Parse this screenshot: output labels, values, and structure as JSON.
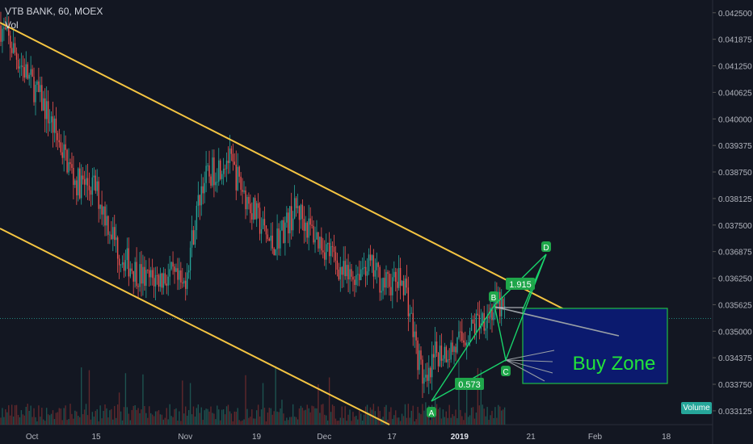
{
  "header": {
    "title": "VTB BANK, 60, MOEX",
    "volume_label": "Vol"
  },
  "volume_tag": "Volume",
  "colors": {
    "background": "#131722",
    "channel": "#f5c542",
    "pattern": "#19d36b",
    "buy_zone_fill": "#0b1a6e",
    "buy_zone_border": "#1fbd45",
    "buy_zone_text": "#22e33a",
    "candle_up": "#26a69a",
    "candle_down": "#ef5350",
    "vol_up": "#1f5a55",
    "vol_down": "#6a2a2e"
  },
  "chart_data": {
    "type": "candlestick",
    "title": "VTB BANK, 60, MOEX",
    "y_ticks": [
      "0.042500",
      "0.041875",
      "0.041250",
      "0.040625",
      "0.040000",
      "0.039375",
      "0.038750",
      "0.038125",
      "0.037500",
      "0.036875",
      "0.036250",
      "0.035625",
      "0.035000",
      "0.034375",
      "0.033750",
      "0.033125"
    ],
    "ylim": [
      0.0328,
      0.0428
    ],
    "x_ticks": [
      "Oct",
      "15",
      "Nov",
      "19",
      "Dec",
      "17",
      "2019",
      "21",
      "Feb",
      "18"
    ],
    "horizontal_level": 0.0353,
    "price_path": [
      [
        0,
        0.0422
      ],
      [
        0.07,
        0.0403
      ],
      [
        0.12,
        0.0385
      ],
      [
        0.15,
        0.0384
      ],
      [
        0.19,
        0.0368
      ],
      [
        0.23,
        0.0362
      ],
      [
        0.27,
        0.0363
      ],
      [
        0.29,
        0.036
      ],
      [
        0.32,
        0.0385
      ],
      [
        0.36,
        0.0391
      ],
      [
        0.385,
        0.0383
      ],
      [
        0.43,
        0.037
      ],
      [
        0.47,
        0.0379
      ],
      [
        0.49,
        0.0374
      ],
      [
        0.52,
        0.0369
      ],
      [
        0.55,
        0.0362
      ],
      [
        0.58,
        0.0366
      ],
      [
        0.61,
        0.0361
      ],
      [
        0.64,
        0.0362
      ],
      [
        0.66,
        0.0345
      ],
      [
        0.675,
        0.0336
      ],
      [
        0.69,
        0.0345
      ],
      [
        0.72,
        0.0346
      ],
      [
        0.76,
        0.0353
      ],
      [
        0.79,
        0.0356
      ],
      [
        0.8,
        0.0354
      ]
    ],
    "annotations": {
      "points": [
        "A",
        "B",
        "C",
        "D"
      ],
      "fib_labels": [
        "1.915",
        "0.573"
      ],
      "zone_label": "Buy Zone"
    }
  }
}
